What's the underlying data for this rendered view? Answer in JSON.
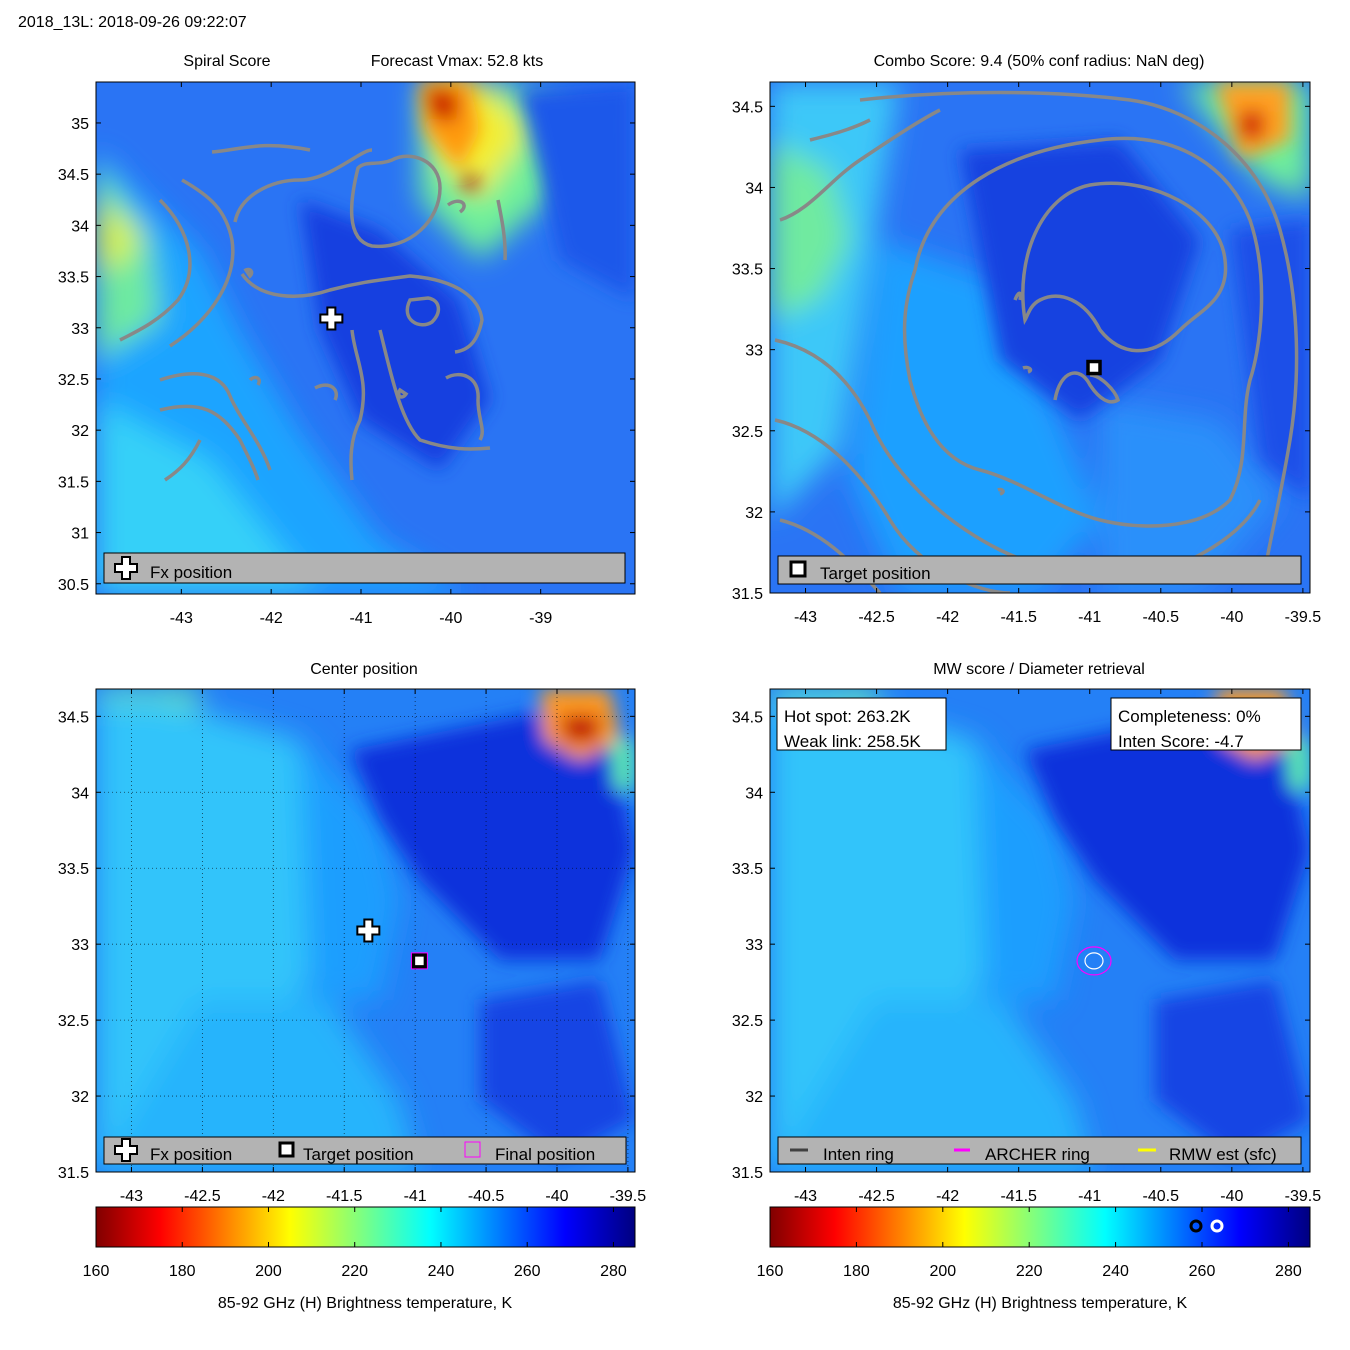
{
  "header": {
    "title": "2018_13L: 2018-09-26 09:22:07"
  },
  "colors": {
    "contour": "#888888",
    "legend_bg": "#b3b3b3",
    "inten_ring": "#404040",
    "archer_ring": "#ff00ff",
    "rmw_est": "#ffff00"
  },
  "colorbar": {
    "label": "85-92 GHz (H) Brightness temperature, K",
    "ticks": [
      "160",
      "180",
      "200",
      "220",
      "240",
      "260",
      "280"
    ],
    "range": [
      160,
      285
    ]
  },
  "panels": [
    {
      "id": "spiral",
      "title": "Spiral Score",
      "title2": "Forecast Vmax: 52.8 kts",
      "xlim": [
        -43.95,
        -37.95
      ],
      "ylim": [
        30.4,
        35.4
      ],
      "xticks": [
        "-43",
        "-42",
        "-41",
        "-40",
        "-39"
      ],
      "yticks": [
        "30.5",
        "31",
        "31.5",
        "32",
        "32.5",
        "33",
        "33.5",
        "34",
        "34.5",
        "35"
      ],
      "legend": [
        "Fx position"
      ],
      "markers": {
        "fx": [
          -41.33,
          33.09
        ]
      }
    },
    {
      "id": "combo",
      "title": "Combo Score: 9.4  (50% conf radius: NaN deg)",
      "xlim": [
        -43.25,
        -39.45
      ],
      "ylim": [
        31.5,
        34.65
      ],
      "xticks": [
        "-43",
        "-42.5",
        "-42",
        "-41.5",
        "-41",
        "-40.5",
        "-40",
        "-39.5"
      ],
      "yticks": [
        "31.5",
        "32",
        "32.5",
        "33",
        "33.5",
        "34",
        "34.5"
      ],
      "legend": [
        "Target position"
      ],
      "markers": {
        "target": [
          -40.97,
          32.89
        ]
      }
    },
    {
      "id": "center",
      "title": "Center position",
      "xlim": [
        -43.25,
        -39.45
      ],
      "ylim": [
        31.5,
        34.68
      ],
      "xticks": [
        "-43",
        "-42.5",
        "-42",
        "-41.5",
        "-41",
        "-40.5",
        "-40",
        "-39.5"
      ],
      "yticks": [
        "31.5",
        "32",
        "32.5",
        "33",
        "33.5",
        "34",
        "34.5"
      ],
      "legend": [
        "Fx position",
        "Target position",
        "Final position"
      ],
      "markers": {
        "fx": [
          -41.33,
          33.09
        ],
        "target": [
          -40.97,
          32.89
        ],
        "final": [
          -40.97,
          32.89
        ]
      }
    },
    {
      "id": "mw",
      "title": "MW score / Diameter retrieval",
      "xlim": [
        -43.25,
        -39.45
      ],
      "ylim": [
        31.5,
        34.68
      ],
      "xticks": [
        "-43",
        "-42.5",
        "-42",
        "-41.5",
        "-41",
        "-40.5",
        "-40",
        "-39.5"
      ],
      "yticks": [
        "31.5",
        "32",
        "32.5",
        "33",
        "33.5",
        "34",
        "34.5"
      ],
      "legend": [
        "Inten ring",
        "ARCHER ring",
        "RMW est (sfc)"
      ],
      "box_left": [
        "Hot spot: 263.2K",
        "Weak link: 258.5K"
      ],
      "box_right": [
        "Completeness: 0%",
        "Inten Score: -4.7"
      ],
      "markers": {
        "rings": [
          -40.97,
          32.89
        ]
      }
    }
  ]
}
